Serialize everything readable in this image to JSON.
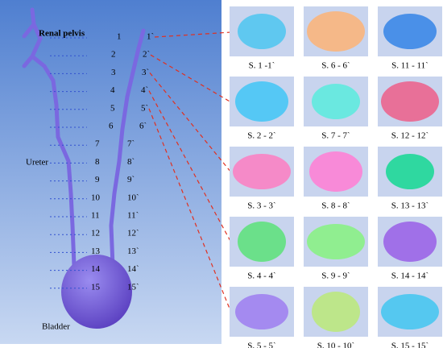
{
  "labels": {
    "renal_pelvis": "Renal pelvis",
    "ureter": "Ureter",
    "bladder": "Bladder"
  },
  "sections": [
    {
      "left": "1",
      "right": "1`"
    },
    {
      "left": "2",
      "right": "2`"
    },
    {
      "left": "3",
      "right": "3`"
    },
    {
      "left": "4",
      "right": "4`"
    },
    {
      "left": "5",
      "right": "5`"
    },
    {
      "left": "6",
      "right": "6`"
    },
    {
      "left": "7",
      "right": "7`"
    },
    {
      "left": "8",
      "right": "8`"
    },
    {
      "left": "9",
      "right": "9`"
    },
    {
      "left": "10",
      "right": "10`"
    },
    {
      "left": "11",
      "right": "11`"
    },
    {
      "left": "12",
      "right": "12`"
    },
    {
      "left": "13",
      "right": "13`"
    },
    {
      "left": "14",
      "right": "14`"
    },
    {
      "left": "15",
      "right": "15`"
    }
  ],
  "cells": [
    {
      "caption": "S. 1 -1`",
      "color": "#5fc8f0"
    },
    {
      "caption": "S. 2 - 2`",
      "color": "#55c8f5"
    },
    {
      "caption": "S. 3 - 3`",
      "color": "#f58ac8"
    },
    {
      "caption": "S. 4 - 4`",
      "color": "#6be08a"
    },
    {
      "caption": "S. 5 - 5`",
      "color": "#a48af0"
    },
    {
      "caption": "S. 6 - 6`",
      "color": "#f5b888"
    },
    {
      "caption": "S. 7 - 7`",
      "color": "#6ae8e0"
    },
    {
      "caption": "S. 8 - 8`",
      "color": "#f88ad8"
    },
    {
      "caption": "S. 9 - 9`",
      "color": "#90ee90"
    },
    {
      "caption": "S. 10 - 10`",
      "color": "#bde68a"
    },
    {
      "caption": "S. 11 - 11`",
      "color": "#4a90e8"
    },
    {
      "caption": "S. 12 - 12`",
      "color": "#e87098"
    },
    {
      "caption": "S. 13 - 13`",
      "color": "#2fd8a0"
    },
    {
      "caption": "S. 14 - 14`",
      "color": "#a070e8"
    },
    {
      "caption": "S. 15 - 15`",
      "color": "#55c8f0"
    }
  ]
}
